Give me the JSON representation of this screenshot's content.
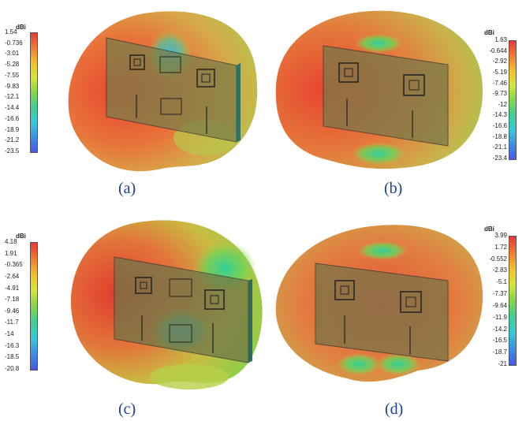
{
  "colorbar_unit": "dBi",
  "panels": [
    {
      "label": "(a)",
      "ticks": [
        "1.54",
        "-0.736",
        "-3.01",
        "-5.28",
        "-7.55",
        "-9.83",
        "-12.1",
        "-14.4",
        "-16.6",
        "-18.9",
        "-21.2",
        "-23.5"
      ]
    },
    {
      "label": "(b)",
      "ticks": [
        "1.63",
        "-0.644",
        "-2.92",
        "-5.19",
        "-7.46",
        "-9.73",
        "-12",
        "-14.3",
        "-16.6",
        "-18.8",
        "-21.1",
        "-23.4"
      ]
    },
    {
      "label": "(c)",
      "ticks": [
        "4.18",
        "1.91",
        "-0.365",
        "-2.64",
        "-4.91",
        "-7.18",
        "-9.46",
        "-11.7",
        "-14",
        "-16.3",
        "-18.5",
        "-20.8"
      ]
    },
    {
      "label": "(d)",
      "ticks": [
        "3.99",
        "1.72",
        "-0.552",
        "-2.83",
        "-5.1",
        "-7.37",
        "-9.64",
        "-11.9",
        "-14.2",
        "-16.5",
        "-18.7",
        "-21"
      ]
    }
  ],
  "colors": {
    "caption": "#1b3f8f",
    "colormap": [
      "#e8373a",
      "#ef7b2d",
      "#f2c12e",
      "#d6e53a",
      "#84d64a",
      "#3fcf93",
      "#37c9d7",
      "#3b8fe6",
      "#4a57e6"
    ]
  }
}
